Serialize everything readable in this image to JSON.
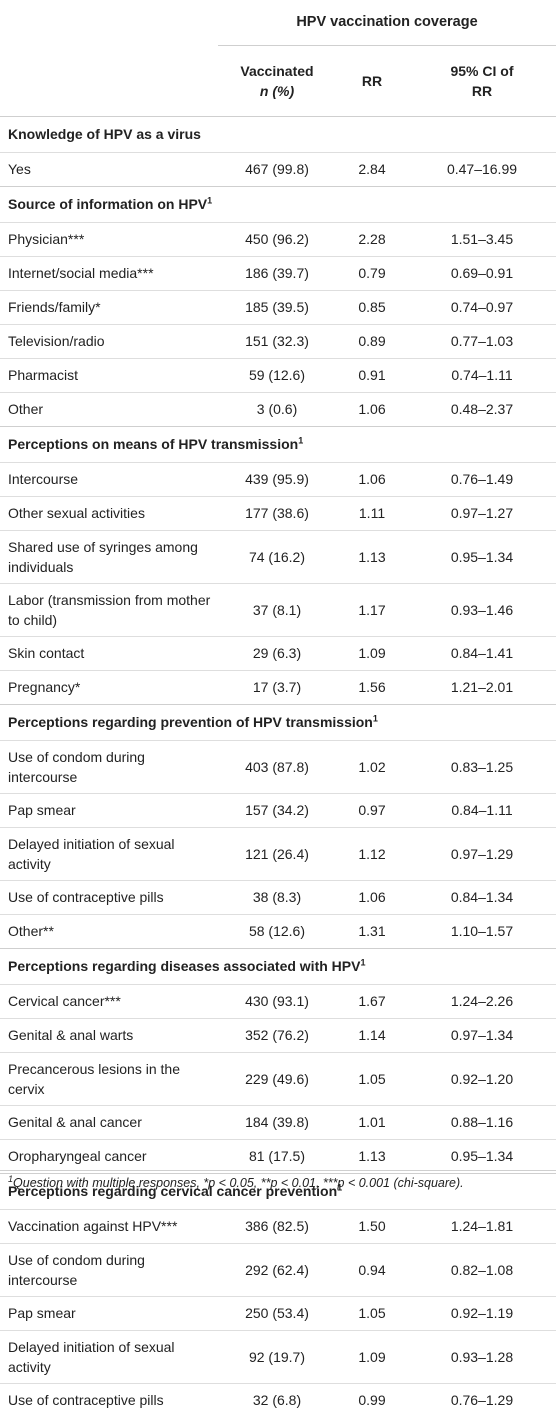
{
  "header": {
    "super_label": "HPV vaccination coverage",
    "col_vaccinated_line1": "Vaccinated",
    "col_vaccinated_line2": "n (%)",
    "col_rr": "RR",
    "col_ci_line1": "95% CI of",
    "col_ci_line2": "RR"
  },
  "sections": [
    {
      "title": "Knowledge of HPV as a virus",
      "sup": "",
      "rows": [
        {
          "label": "Yes",
          "n": "467 (99.8)",
          "rr": "2.84",
          "ci": "0.47–16.99"
        }
      ]
    },
    {
      "title": "Source of information on HPV",
      "sup": "1",
      "rows": [
        {
          "label": "Physician***",
          "n": "450 (96.2)",
          "rr": "2.28",
          "ci": "1.51–3.45"
        },
        {
          "label": "Internet/social media***",
          "n": "186 (39.7)",
          "rr": "0.79",
          "ci": "0.69–0.91"
        },
        {
          "label": "Friends/family*",
          "n": "185 (39.5)",
          "rr": "0.85",
          "ci": "0.74–0.97"
        },
        {
          "label": "Television/radio",
          "n": "151 (32.3)",
          "rr": "0.89",
          "ci": "0.77–1.03"
        },
        {
          "label": "Pharmacist",
          "n": "59 (12.6)",
          "rr": "0.91",
          "ci": "0.74–1.11"
        },
        {
          "label": "Other",
          "n": "3 (0.6)",
          "rr": "1.06",
          "ci": "0.48–2.37"
        }
      ]
    },
    {
      "title": "Perceptions on means of HPV transmission",
      "sup": "1",
      "rows": [
        {
          "label": "Intercourse",
          "n": "439 (95.9)",
          "rr": "1.06",
          "ci": "0.76–1.49"
        },
        {
          "label": "Other sexual activities",
          "n": "177 (38.6)",
          "rr": "1.11",
          "ci": "0.97–1.27"
        },
        {
          "label": "Shared use of syringes among individuals",
          "n": "74 (16.2)",
          "rr": "1.13",
          "ci": "0.95–1.34",
          "two_line": true
        },
        {
          "label": "Labor (transmission from mother to child)",
          "n": "37 (8.1)",
          "rr": "1.17",
          "ci": "0.93–1.46",
          "two_line": true
        },
        {
          "label": "Skin contact",
          "n": "29 (6.3)",
          "rr": "1.09",
          "ci": "0.84–1.41"
        },
        {
          "label": "Pregnancy*",
          "n": "17 (3.7)",
          "rr": "1.56",
          "ci": "1.21–2.01"
        }
      ]
    },
    {
      "title": "Perceptions regarding prevention of HPV transmission",
      "sup": "1",
      "rows": [
        {
          "label": "Use of condom during intercourse",
          "n": "403 (87.8)",
          "rr": "1.02",
          "ci": "0.83–1.25",
          "two_line": true
        },
        {
          "label": "Pap smear",
          "n": "157 (34.2)",
          "rr": "0.97",
          "ci": "0.84–1.11"
        },
        {
          "label": "Delayed initiation of sexual activity",
          "n": "121 (26.4)",
          "rr": "1.12",
          "ci": "0.97–1.29",
          "two_line": true
        },
        {
          "label": "Use of contraceptive pills",
          "n": "38 (8.3)",
          "rr": "1.06",
          "ci": "0.84–1.34"
        },
        {
          "label": "Other**",
          "n": "58 (12.6)",
          "rr": "1.31",
          "ci": "1.10–1.57"
        }
      ]
    },
    {
      "title": "Perceptions regarding diseases associated with HPV",
      "sup": "1",
      "rows": [
        {
          "label": "Cervical cancer***",
          "n": "430 (93.1)",
          "rr": "1.67",
          "ci": "1.24–2.26"
        },
        {
          "label": "Genital & anal warts",
          "n": "352 (76.2)",
          "rr": "1.14",
          "ci": "0.97–1.34"
        },
        {
          "label": "Precancerous lesions in the cervix",
          "n": "229 (49.6)",
          "rr": "1.05",
          "ci": "0.92–1.20",
          "two_line": true
        },
        {
          "label": "Genital & anal cancer",
          "n": "184 (39.8)",
          "rr": "1.01",
          "ci": "0.88–1.16"
        },
        {
          "label": "Oropharyngeal cancer",
          "n": "81 (17.5)",
          "rr": "1.13",
          "ci": "0.95–1.34"
        }
      ]
    },
    {
      "title": "Perceptions regarding cervical cancer prevention",
      "sup": "1",
      "rows": [
        {
          "label": "Vaccination against HPV***",
          "n": "386 (82.5)",
          "rr": "1.50",
          "ci": "1.24–1.81"
        },
        {
          "label": "Use of condom during intercourse",
          "n": "292 (62.4)",
          "rr": "0.94",
          "ci": "0.82–1.08",
          "two_line": true
        },
        {
          "label": "Pap smear",
          "n": "250 (53.4)",
          "rr": "1.05",
          "ci": "0.92–1.19"
        },
        {
          "label": "Delayed initiation of sexual activity",
          "n": "92 (19.7)",
          "rr": "1.09",
          "ci": "0.93–1.28",
          "two_line": true
        },
        {
          "label": "Use of contraceptive pills",
          "n": "32 (6.8)",
          "rr": "0.99",
          "ci": "0.76–1.29"
        }
      ]
    }
  ],
  "footnote": {
    "sup": "1",
    "text": "Question with multiple responses, *p < 0.05, **p < 0.01, ***p < 0.001 (chi-square)."
  }
}
